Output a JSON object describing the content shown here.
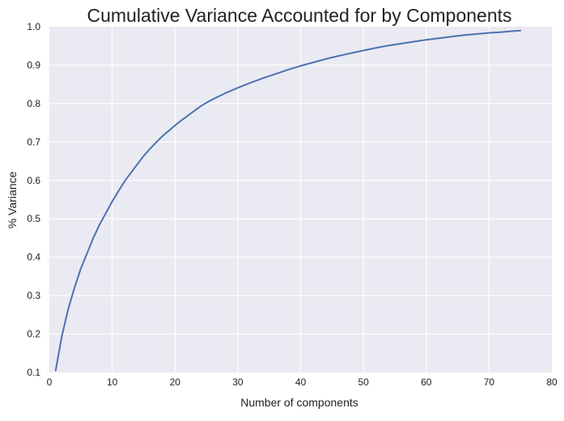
{
  "chart_data": {
    "type": "line",
    "title": "Cumulative Variance Accounted for by Components",
    "xlabel": "Number of components",
    "ylabel": "% Variance",
    "xlim": [
      0,
      80
    ],
    "ylim": [
      0.1,
      1.0
    ],
    "x_ticks": [
      0,
      10,
      20,
      30,
      40,
      50,
      60,
      70,
      80
    ],
    "y_ticks": [
      0.1,
      0.2,
      0.3,
      0.4,
      0.5,
      0.6,
      0.7,
      0.8,
      0.9,
      1.0
    ],
    "x_tick_labels": [
      "0",
      "10",
      "20",
      "30",
      "40",
      "50",
      "60",
      "70",
      "80"
    ],
    "y_tick_labels": [
      "0.1",
      "0.2",
      "0.3",
      "0.4",
      "0.5",
      "0.6",
      "0.7",
      "0.8",
      "0.9",
      "1.0"
    ],
    "grid": true,
    "background_color": "#eaeaf2",
    "grid_color": "#ffffff",
    "series": [
      {
        "color": "#4c72b0",
        "x": [
          1,
          2,
          3,
          4,
          5,
          6,
          7,
          8,
          9,
          10,
          11,
          12,
          13,
          14,
          15,
          16,
          17,
          18,
          19,
          20,
          21,
          22,
          23,
          24,
          25,
          26,
          27,
          28,
          29,
          30,
          32,
          34,
          36,
          38,
          40,
          42,
          44,
          46,
          48,
          50,
          52,
          54,
          56,
          58,
          60,
          62,
          64,
          66,
          68,
          70,
          72,
          75
        ],
        "y": [
          0.105,
          0.195,
          0.265,
          0.32,
          0.37,
          0.41,
          0.45,
          0.485,
          0.515,
          0.545,
          0.572,
          0.598,
          0.62,
          0.642,
          0.663,
          0.682,
          0.699,
          0.715,
          0.729,
          0.743,
          0.756,
          0.768,
          0.78,
          0.792,
          0.802,
          0.811,
          0.819,
          0.827,
          0.834,
          0.841,
          0.854,
          0.866,
          0.877,
          0.888,
          0.898,
          0.907,
          0.916,
          0.924,
          0.931,
          0.938,
          0.945,
          0.951,
          0.956,
          0.961,
          0.966,
          0.97,
          0.974,
          0.978,
          0.981,
          0.984,
          0.986,
          0.99
        ]
      }
    ]
  }
}
